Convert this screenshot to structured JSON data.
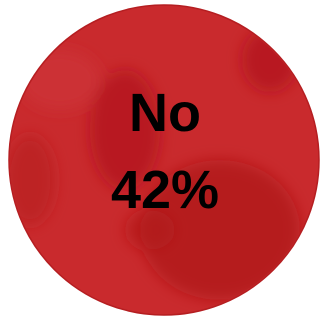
{
  "badge": {
    "label": "No",
    "value": "42%"
  }
}
